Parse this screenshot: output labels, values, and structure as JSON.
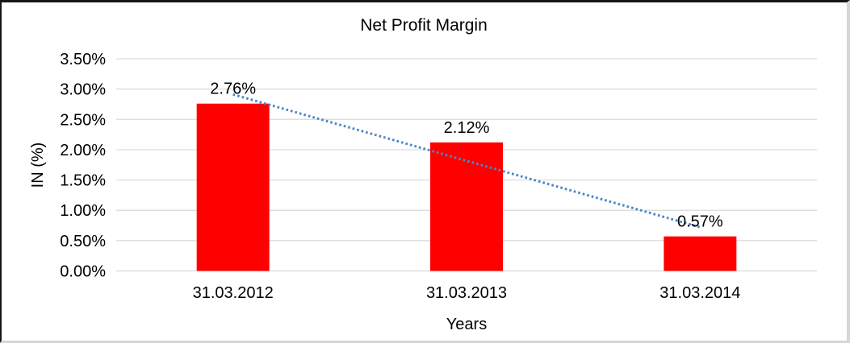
{
  "chart_data": {
    "type": "bar",
    "title": "Net Profit Margin",
    "xlabel": "Years",
    "ylabel": "IN (%)",
    "categories": [
      "31.03.2012",
      "31.03.2013",
      "31.03.2014"
    ],
    "values": [
      2.76,
      2.12,
      0.57
    ],
    "data_labels": [
      "2.76%",
      "2.12%",
      "0.57%"
    ],
    "ylim": [
      0,
      3.5
    ],
    "ytick_step": 0.5,
    "ytick_labels": [
      "0.00%",
      "0.50%",
      "1.00%",
      "1.50%",
      "2.00%",
      "2.50%",
      "3.00%",
      "3.50%"
    ],
    "grid": true,
    "legend": "none",
    "bar_color": "#ff0000",
    "gridline_color": "#d9d9d9",
    "text_color": "#000000",
    "trendline": {
      "type": "linear",
      "style": "dotted",
      "color": "#4a86c8"
    }
  }
}
